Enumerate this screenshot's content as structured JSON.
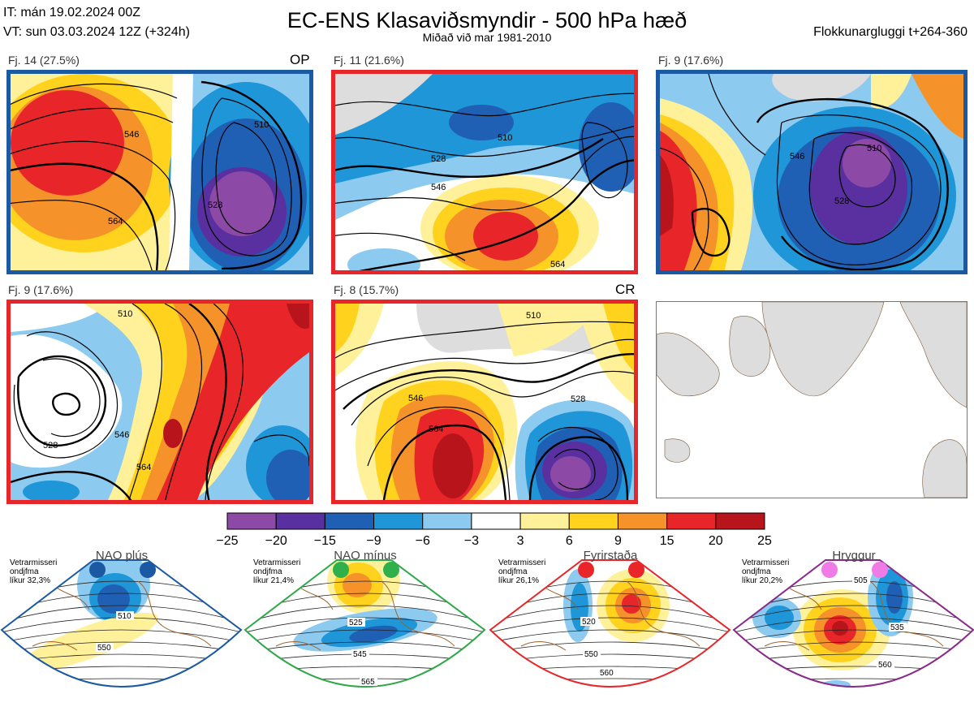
{
  "header": {
    "it_line": "IT: mán 19.02.2024 00Z",
    "vt_line": "VT: sun 03.03.2024 12Z  (+324h)",
    "title": "EC-ENS Klasaviðsmyndir - 500 hPa hæð",
    "subtitle": "Miðað við mar 1981-2010",
    "window": "Flokkunargluggi t+264-360"
  },
  "colors": {
    "blue_frame": "#1b5aa3",
    "red_frame": "#e8262a"
  },
  "chart_data": [
    {
      "type": "heatmap",
      "label": "Fj. 14 (27.5%)",
      "tag": "OP",
      "frame": "blue",
      "contour_labels": [
        "510",
        "528",
        "546",
        "564"
      ],
      "anomaly_pattern": "positive west, negative east"
    },
    {
      "type": "heatmap",
      "label": "Fj. 11 (21.6%)",
      "tag": "",
      "frame": "red",
      "contour_labels": [
        "510",
        "528",
        "546",
        "564"
      ],
      "anomaly_pattern": "negative north, positive south"
    },
    {
      "type": "heatmap",
      "label": "Fj. 9 (17.6%)",
      "tag": "",
      "frame": "blue",
      "contour_labels": [
        "510",
        "528",
        "546"
      ],
      "anomaly_pattern": "positive west, strong negative center-east"
    },
    {
      "type": "heatmap",
      "label": "Fj. 9 (17.6%)",
      "tag": "",
      "frame": "red",
      "contour_labels": [
        "510",
        "528",
        "546",
        "564"
      ],
      "anomaly_pattern": "positive diagonal band, negative corners"
    },
    {
      "type": "heatmap",
      "label": "Fj. 8 (15.7%)",
      "tag": "CR",
      "frame": "red",
      "contour_labels": [
        "510",
        "528",
        "546",
        "564"
      ],
      "anomaly_pattern": "strong positive center-west, strong negative southeast"
    },
    {
      "type": "colorbar",
      "ticks": [
        "−25",
        "−20",
        "−15",
        "−9",
        "−6",
        "−3",
        "3",
        "6",
        "9",
        "15",
        "20",
        "25"
      ],
      "colors": [
        "#8c4aa6",
        "#5a2fa0",
        "#2060b4",
        "#1f96d8",
        "#8ccaf0",
        "#ffffff",
        "#fff19a",
        "#ffd21e",
        "#f5922a",
        "#e8262a",
        "#b8141b"
      ]
    }
  ],
  "regimes": [
    {
      "name": "NAO plús",
      "note": [
        "Vetrarmisseri",
        "ondjfma",
        "líkur 32,3%"
      ],
      "color": "#1b5aa3",
      "dot_color": "#1b5aa3",
      "contour_labels": [
        "510",
        "550"
      ]
    },
    {
      "name": "NAO mínus",
      "note": [
        "Vetrarmisseri",
        "ondjfma",
        "líkur 21,4%"
      ],
      "color": "#2fa84a",
      "dot_color": "#2fb04a",
      "contour_labels": [
        "525",
        "545",
        "565"
      ]
    },
    {
      "name": "Fyrirstaða",
      "note": [
        "Vetrarmisseri",
        "ondjfma",
        "líkur 26,1%"
      ],
      "color": "#e8262a",
      "dot_color": "#e8262a",
      "contour_labels": [
        "520",
        "550",
        "560"
      ]
    },
    {
      "name": "Hryggur",
      "note": [
        "Vetrarmisseri",
        "ondjfma",
        "líkur 20,2%"
      ],
      "color": "#8a2a8a",
      "dot_color": "#ee7be6",
      "contour_labels": [
        "505",
        "535",
        "560"
      ]
    }
  ]
}
